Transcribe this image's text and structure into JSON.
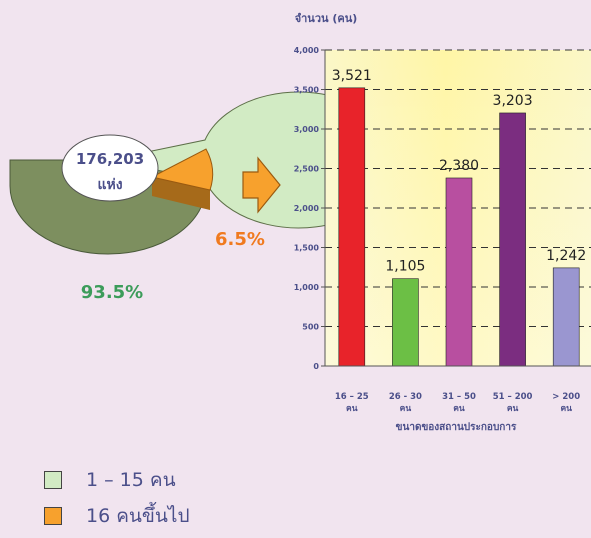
{
  "pie": {
    "center_line1": "176,203",
    "center_line2": "แห่ง",
    "pct_small": "6.5%",
    "pct_large": "93.5%",
    "color_large": "#d2ebc4",
    "color_large_side": "#7d8f5f",
    "color_small": "#f7a12d",
    "color_small_side": "#a66a1a",
    "label_color_small": "#f07a1f",
    "label_color_large": "#3c9c5a"
  },
  "legend": [
    {
      "label": "1 – 15 คน",
      "color": "#d2ebc4"
    },
    {
      "label": "16 คนขึ้นไป",
      "color": "#f7a12d"
    }
  ],
  "chart_data": {
    "type": "bar",
    "ylabel": "จำนวน (คน)",
    "xlabel": "ขนาดของสถานประกอบการ",
    "ylim": [
      0,
      4000
    ],
    "yticks": [
      "0",
      "500",
      "1,000",
      "1,500",
      "2,000",
      "2,500",
      "3,000",
      "3,500",
      "4,000"
    ],
    "categories": [
      {
        "line1": "16 – 25",
        "line2": "คน"
      },
      {
        "line1": "26 - 30",
        "line2": "คน"
      },
      {
        "line1": "31 – 50",
        "line2": "คน"
      },
      {
        "line1": "51 – 200",
        "line2": "คน"
      },
      {
        "line1": "> 200",
        "line2": "คน"
      }
    ],
    "values": [
      3521,
      1105,
      2380,
      3203,
      1242
    ],
    "value_labels": [
      "3,521",
      "1,105",
      "2,380",
      "3,203",
      "1,242"
    ],
    "colors": [
      "#e8232a",
      "#6cbf45",
      "#b84fa0",
      "#7b2d80",
      "#9a96d0"
    ],
    "grid": true
  }
}
